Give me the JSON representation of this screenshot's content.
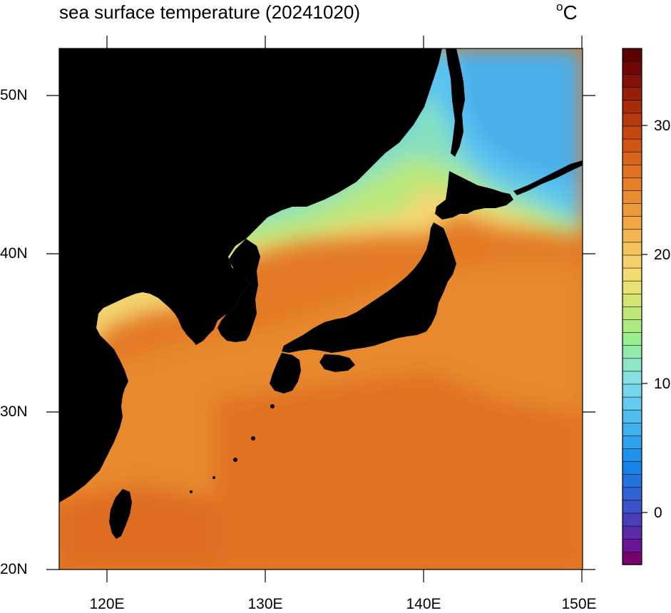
{
  "title": "sea surface temperature (20241020)",
  "units": "°C",
  "map": {
    "lon_range": [
      117,
      150
    ],
    "lat_range": [
      20,
      53
    ],
    "lat_ticks": [
      "50N",
      "40N",
      "30N",
      "20N"
    ],
    "lon_ticks": [
      "120E",
      "130E",
      "140E",
      "150E"
    ],
    "land_color": "#000000"
  },
  "colorbar": {
    "range": [
      -4,
      36
    ],
    "labels": [
      "30",
      "20",
      "10",
      "0"
    ],
    "colors": [
      "#7a006e",
      "#6c1495",
      "#5a2aa8",
      "#4a3fb8",
      "#3c52c6",
      "#2f63d2",
      "#2173de",
      "#1783e6",
      "#1f93ea",
      "#2ea2ec",
      "#3fb0ed",
      "#50bdee",
      "#63cbef",
      "#76d6ee",
      "#86dfe2",
      "#8ee6c8",
      "#92eaaa",
      "#9aee8f",
      "#ace981",
      "#c0e679",
      "#d3e474",
      "#e7e274",
      "#f2dc72",
      "#f6d06a",
      "#f5c35e",
      "#f2b552",
      "#efa746",
      "#ec993b",
      "#e98c31",
      "#e57f28",
      "#e07221",
      "#d9641b",
      "#d05616",
      "#c54812",
      "#b63a0f",
      "#a62c0c",
      "#951e0a",
      "#821108",
      "#700606",
      "#5c0000"
    ]
  }
}
